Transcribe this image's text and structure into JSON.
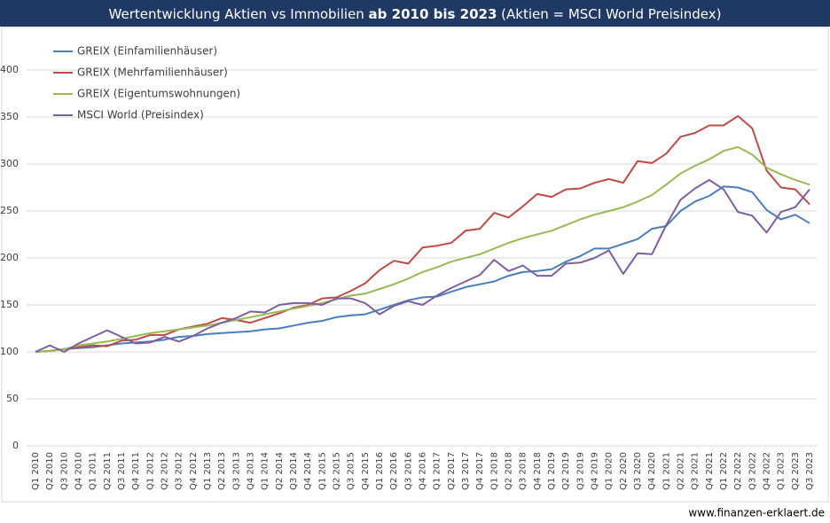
{
  "chart_data": {
    "type": "line",
    "title_parts": [
      "Wertentwicklung Aktien vs Immobilien ",
      "ab 2010 bis 2023",
      " (Aktien = MSCI World Preisindex)"
    ],
    "source": "www.finanzen-erklaert.de",
    "categories": [
      "Q1 2010",
      "Q2 2010",
      "Q3 2010",
      "Q4 2010",
      "Q1 2011",
      "Q2 2011",
      "Q3 2011",
      "Q4 2011",
      "Q1 2012",
      "Q2 2012",
      "Q3 2012",
      "Q4 2012",
      "Q1 2013",
      "Q2 2013",
      "Q3 2013",
      "Q4 2013",
      "Q1 2014",
      "Q2 2014",
      "Q3 2014",
      "Q4 2014",
      "Q1 2015",
      "Q2 2015",
      "Q3 2015",
      "Q4 2015",
      "Q1 2016",
      "Q2 2016",
      "Q3 2016",
      "Q4 2016",
      "Q1 2017",
      "Q2 2017",
      "Q3 2017",
      "Q4 2017",
      "Q1 2018",
      "Q2 2018",
      "Q3 2018",
      "Q4 2018",
      "Q1 2019",
      "Q2 2019",
      "Q3 2019",
      "Q4 2019",
      "Q1 2020",
      "Q2 2020",
      "Q3 2020",
      "Q4 2020",
      "Q1 2021",
      "Q2 2021",
      "Q3 2021",
      "Q4 2021",
      "Q1 2022",
      "Q2 2022",
      "Q3 2022",
      "Q4 2022",
      "Q1 2023",
      "Q2 2023",
      "Q3 2023"
    ],
    "series": [
      {
        "name": "GREIX (Einfamilienhäuser)",
        "color": "#4a7ebb",
        "values": [
          100,
          101,
          103,
          104,
          105,
          107,
          109,
          110,
          111,
          113,
          116,
          117,
          119,
          120,
          121,
          122,
          124,
          125,
          128,
          131,
          133,
          137,
          139,
          140,
          145,
          150,
          155,
          158,
          159,
          164,
          169,
          172,
          175,
          181,
          185,
          186,
          188,
          196,
          202,
          210,
          210,
          215,
          220,
          231,
          234,
          250,
          260,
          266,
          276,
          275,
          270,
          251,
          241,
          246,
          237
        ]
      },
      {
        "name": "GREIX (Mehrfamilienhäuser)",
        "color": "#be4b48",
        "values": [
          100,
          101,
          103,
          105,
          107,
          106,
          112,
          113,
          118,
          118,
          124,
          127,
          130,
          136,
          134,
          131,
          136,
          141,
          147,
          150,
          157,
          158,
          165,
          173,
          187,
          197,
          194,
          211,
          213,
          216,
          229,
          231,
          248,
          243,
          255,
          268,
          265,
          273,
          274,
          280,
          284,
          280,
          303,
          301,
          311,
          329,
          333,
          341,
          341,
          351,
          338,
          293,
          275,
          273,
          257
        ]
      },
      {
        "name": "GREIX (Eigentumswohnungen)",
        "color": "#98b954",
        "values": [
          100,
          101,
          103,
          107,
          109,
          111,
          114,
          117,
          120,
          122,
          124,
          126,
          128,
          131,
          134,
          137,
          140,
          143,
          146,
          149,
          152,
          156,
          160,
          162,
          167,
          172,
          178,
          185,
          190,
          196,
          200,
          204,
          210,
          216,
          221,
          225,
          229,
          235,
          241,
          246,
          250,
          254,
          260,
          267,
          278,
          290,
          298,
          305,
          314,
          318,
          310,
          296,
          289,
          283,
          278
        ]
      },
      {
        "name": "MSCI World (Preisindex)",
        "color": "#7d5fa0",
        "values": [
          100,
          107,
          100,
          109,
          116,
          123,
          116,
          109,
          110,
          116,
          111,
          117,
          125,
          131,
          136,
          143,
          142,
          150,
          152,
          152,
          150,
          157,
          157,
          152,
          140,
          149,
          154,
          150,
          160,
          168,
          175,
          182,
          198,
          186,
          192,
          181,
          181,
          194,
          195,
          200,
          208,
          183,
          205,
          204,
          235,
          262,
          274,
          283,
          273,
          249,
          245,
          227,
          249,
          254,
          273
        ]
      }
    ],
    "ylim": [
      0,
      400
    ],
    "yticks": [
      0,
      50,
      100,
      150,
      200,
      250,
      300,
      350,
      400
    ],
    "grid": true,
    "legend": "upper left"
  }
}
